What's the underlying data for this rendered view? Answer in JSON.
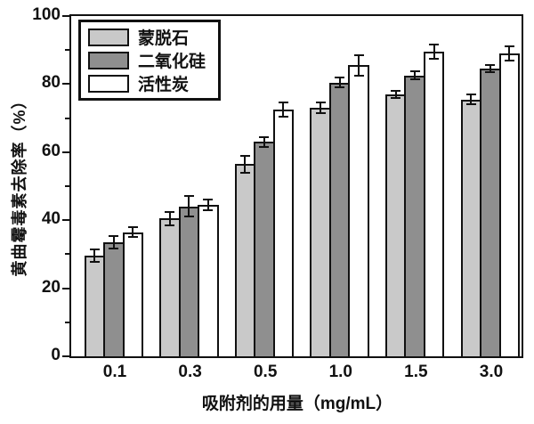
{
  "chart_data": {
    "type": "bar",
    "title": "",
    "xlabel": "吸附剂的用量（mg/mL）",
    "ylabel": "黄曲霉毒素去除率（%）",
    "categories": [
      "0.1",
      "0.3",
      "0.5",
      "1.0",
      "1.5",
      "3.0"
    ],
    "series": [
      {
        "name": "蒙脱石",
        "key": "montmorillonite",
        "color": "#c9c9c9",
        "values": [
          29.5,
          40.5,
          56.5,
          73,
          77,
          75.5
        ],
        "errors": [
          1.8,
          2.0,
          2.5,
          1.5,
          1.0,
          1.5
        ]
      },
      {
        "name": "二氧化硅",
        "key": "silica",
        "color": "#8f8f8f",
        "values": [
          33.5,
          44,
          63,
          80.5,
          82.5,
          84.5
        ],
        "errors": [
          1.8,
          3.0,
          1.5,
          1.5,
          1.2,
          1.0
        ]
      },
      {
        "name": "活性炭",
        "key": "activated-carbon",
        "color": "#ffffff",
        "values": [
          36.5,
          44.5,
          72.5,
          85.5,
          89.5,
          89
        ],
        "errors": [
          1.5,
          1.5,
          2.0,
          3.0,
          2.0,
          2.0
        ]
      }
    ],
    "ylim": [
      0,
      100
    ],
    "y_major_ticks": [
      0,
      20,
      40,
      60,
      80,
      100
    ],
    "y_minor_ticks": [
      10,
      30,
      50,
      70,
      90
    ],
    "grid": false,
    "legend_position": "top-left",
    "error_bars": true,
    "axis_color": "#111111",
    "background_color": "#ffffff"
  }
}
